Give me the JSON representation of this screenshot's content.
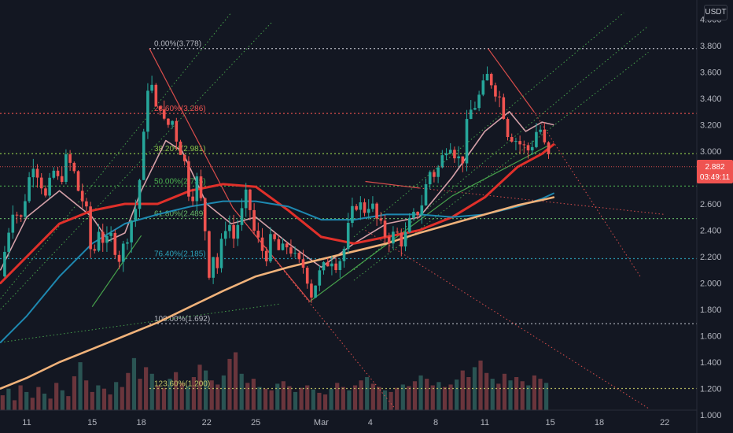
{
  "unit": "USDT",
  "price_tag": {
    "price": "2.882",
    "countdown": "03:49:11"
  },
  "colors": {
    "bg": "#131722",
    "up": "#26a69a",
    "down": "#ef5350",
    "ma_fast": "#d4a0a8",
    "ma_mid": "#e0302a",
    "ma_slow": "#1e88b0",
    "ma_long": "#f0b27a"
  },
  "chart_data": {
    "type": "candlestick",
    "pair": "USDT",
    "ylim": [
      1.05,
      4.05
    ],
    "y_ticks": [
      "4.000",
      "3.800",
      "3.600",
      "3.400",
      "3.200",
      "3.000",
      "2.800",
      "2.600",
      "2.400",
      "2.200",
      "2.000",
      "1.800",
      "1.600",
      "1.400",
      "1.200",
      "1.000"
    ],
    "x_ticks": [
      "11",
      "15",
      "18",
      "22",
      "25",
      "Mar",
      "4",
      "8",
      "11",
      "15",
      "18",
      "22"
    ],
    "x_tick_days": [
      0,
      4,
      7,
      11,
      14,
      18,
      21,
      25,
      28,
      32,
      35,
      39
    ],
    "fib_levels": [
      {
        "label": "0.00%(3.778)",
        "value": 3.778,
        "color": "#b2b5be"
      },
      {
        "label": "23.60%(3.286)",
        "value": 3.286,
        "color": "#ef5350"
      },
      {
        "label": "38.20%(2.981)",
        "value": 2.981,
        "color": "#8bc34a"
      },
      {
        "label": "50.00%(2.735)",
        "value": 2.735,
        "color": "#4caf50"
      },
      {
        "label": "61.80%(2.489)",
        "value": 2.489,
        "color": "#66bb6a"
      },
      {
        "label": "76.40%(2.185)",
        "value": 2.185,
        "color": "#2ba0b8"
      },
      {
        "label": "100.00%(1.692)",
        "value": 1.692,
        "color": "#b2b5be"
      },
      {
        "label": "123.60%(1.200)",
        "value": 1.2,
        "color": "#c0c466"
      }
    ],
    "current_price": 2.882,
    "price_path": [
      [
        -1.6,
        2.05
      ],
      [
        -1.2,
        2.35
      ],
      [
        -0.8,
        2.6
      ],
      [
        -0.4,
        2.45
      ],
      [
        0,
        2.72
      ],
      [
        0.4,
        2.92
      ],
      [
        0.8,
        2.8
      ],
      [
        1.2,
        2.62
      ],
      [
        1.6,
        2.86
      ],
      [
        2.0,
        2.75
      ],
      [
        2.4,
        2.93
      ],
      [
        2.8,
        2.88
      ],
      [
        3.2,
        2.68
      ],
      [
        3.6,
        2.58
      ],
      [
        4.0,
        2.15
      ],
      [
        4.4,
        2.42
      ],
      [
        4.8,
        2.28
      ],
      [
        5.2,
        2.36
      ],
      [
        5.6,
        2.18
      ],
      [
        6.0,
        2.3
      ],
      [
        6.4,
        2.48
      ],
      [
        6.8,
        2.62
      ],
      [
        7.0,
        2.95
      ],
      [
        7.2,
        3.15
      ],
      [
        7.4,
        3.5
      ],
      [
        7.6,
        3.52
      ],
      [
        7.9,
        3.3
      ],
      [
        8.2,
        3.38
      ],
      [
        8.5,
        3.12
      ],
      [
        8.8,
        3.28
      ],
      [
        9.2,
        3.08
      ],
      [
        9.6,
        2.95
      ],
      [
        10.0,
        2.62
      ],
      [
        10.4,
        2.78
      ],
      [
        10.8,
        2.52
      ],
      [
        11.0,
        2.3
      ],
      [
        11.2,
        2.02
      ],
      [
        11.4,
        2.22
      ],
      [
        11.7,
        2.1
      ],
      [
        12.0,
        2.38
      ],
      [
        12.3,
        2.5
      ],
      [
        12.6,
        2.32
      ],
      [
        12.9,
        2.45
      ],
      [
        13.2,
        2.55
      ],
      [
        13.5,
        2.7
      ],
      [
        13.8,
        2.42
      ],
      [
        14.2,
        2.3
      ],
      [
        14.6,
        2.2
      ],
      [
        15.0,
        2.35
      ],
      [
        15.5,
        2.22
      ],
      [
        16.0,
        2.3
      ],
      [
        16.5,
        2.15
      ],
      [
        17.0,
        2.12
      ],
      [
        17.4,
        1.92
      ],
      [
        17.8,
        2.05
      ],
      [
        18.2,
        2.12
      ],
      [
        18.6,
        2.2
      ],
      [
        19.0,
        2.14
      ],
      [
        19.4,
        2.26
      ],
      [
        19.8,
        2.5
      ],
      [
        20.2,
        2.62
      ],
      [
        20.6,
        2.55
      ],
      [
        21.0,
        2.62
      ],
      [
        21.4,
        2.48
      ],
      [
        21.8,
        2.38
      ],
      [
        22.2,
        2.34
      ],
      [
        22.6,
        2.38
      ],
      [
        23.0,
        2.3
      ],
      [
        23.4,
        2.45
      ],
      [
        23.8,
        2.52
      ],
      [
        24.2,
        2.62
      ],
      [
        24.6,
        2.85
      ],
      [
        25.0,
        2.82
      ],
      [
        25.4,
        2.95
      ],
      [
        25.8,
        3.1
      ],
      [
        26.2,
        2.98
      ],
      [
        26.6,
        2.9
      ],
      [
        27.0,
        3.28
      ],
      [
        27.4,
        3.35
      ],
      [
        27.8,
        3.45
      ],
      [
        28.2,
        3.58
      ],
      [
        28.6,
        3.48
      ],
      [
        29.0,
        3.38
      ],
      [
        29.4,
        3.15
      ],
      [
        29.8,
        3.1
      ],
      [
        30.2,
        3.05
      ],
      [
        30.6,
        3.0
      ],
      [
        31.0,
        3.08
      ],
      [
        31.3,
        3.22
      ],
      [
        31.6,
        3.05
      ],
      [
        31.9,
        2.95
      ],
      [
        32.1,
        2.88
      ]
    ],
    "ma_series": [
      {
        "key": "ma_fast",
        "points": [
          [
            -1.6,
            2.1
          ],
          [
            0,
            2.5
          ],
          [
            2,
            2.7
          ],
          [
            4,
            2.5
          ],
          [
            5,
            2.32
          ],
          [
            6,
            2.38
          ],
          [
            7,
            2.7
          ],
          [
            8.5,
            3.08
          ],
          [
            9.5,
            3.0
          ],
          [
            11,
            2.6
          ],
          [
            12.5,
            2.45
          ],
          [
            14,
            2.5
          ],
          [
            16,
            2.3
          ],
          [
            18,
            2.12
          ],
          [
            20,
            2.3
          ],
          [
            22,
            2.45
          ],
          [
            24,
            2.5
          ],
          [
            26,
            2.8
          ],
          [
            28,
            3.15
          ],
          [
            29.5,
            3.3
          ],
          [
            30.5,
            3.15
          ],
          [
            31.5,
            3.22
          ],
          [
            32.2,
            3.2
          ]
        ]
      },
      {
        "key": "ma_mid",
        "points": [
          [
            -1.6,
            2.0
          ],
          [
            0,
            2.2
          ],
          [
            2,
            2.45
          ],
          [
            4,
            2.55
          ],
          [
            6,
            2.6
          ],
          [
            8,
            2.6
          ],
          [
            10,
            2.7
          ],
          [
            12,
            2.75
          ],
          [
            14,
            2.73
          ],
          [
            16,
            2.55
          ],
          [
            18,
            2.35
          ],
          [
            20,
            2.3
          ],
          [
            22,
            2.35
          ],
          [
            24,
            2.4
          ],
          [
            26,
            2.5
          ],
          [
            28,
            2.65
          ],
          [
            30,
            2.88
          ],
          [
            31.5,
            2.98
          ],
          [
            32.2,
            3.05
          ]
        ]
      },
      {
        "key": "ma_slow",
        "points": [
          [
            -1.6,
            1.55
          ],
          [
            0,
            1.75
          ],
          [
            2,
            2.05
          ],
          [
            4,
            2.3
          ],
          [
            6,
            2.45
          ],
          [
            8,
            2.52
          ],
          [
            10,
            2.58
          ],
          [
            12,
            2.62
          ],
          [
            14,
            2.62
          ],
          [
            16,
            2.58
          ],
          [
            18,
            2.48
          ],
          [
            20,
            2.48
          ],
          [
            22,
            2.52
          ],
          [
            24,
            2.52
          ],
          [
            26,
            2.5
          ],
          [
            28,
            2.52
          ],
          [
            30,
            2.58
          ],
          [
            31.5,
            2.64
          ],
          [
            32.2,
            2.68
          ]
        ]
      },
      {
        "key": "ma_long",
        "points": [
          [
            -1.6,
            1.2
          ],
          [
            0,
            1.28
          ],
          [
            2,
            1.4
          ],
          [
            4,
            1.5
          ],
          [
            6,
            1.6
          ],
          [
            8,
            1.7
          ],
          [
            10,
            1.82
          ],
          [
            12,
            1.94
          ],
          [
            14,
            2.05
          ],
          [
            16,
            2.12
          ],
          [
            18,
            2.18
          ],
          [
            20,
            2.24
          ],
          [
            22,
            2.3
          ],
          [
            24,
            2.38
          ],
          [
            26,
            2.45
          ],
          [
            28,
            2.52
          ],
          [
            30,
            2.59
          ],
          [
            31.5,
            2.63
          ],
          [
            32.2,
            2.65
          ]
        ]
      }
    ],
    "volume": [
      18,
      26,
      12,
      30,
      22,
      15,
      28,
      20,
      14,
      33,
      24,
      17,
      41,
      58,
      36,
      22,
      30,
      26,
      19,
      34,
      28,
      45,
      63,
      38,
      52,
      44,
      30,
      27,
      38,
      46,
      33,
      29,
      40,
      55,
      48,
      36,
      31,
      42,
      62,
      70,
      44,
      33,
      38,
      28,
      26,
      24,
      32,
      35,
      29,
      22,
      27,
      30,
      25,
      21,
      19,
      26,
      33,
      28,
      24,
      30,
      36,
      40,
      32,
      28,
      24,
      22,
      27,
      31,
      29,
      35,
      42,
      38,
      30,
      34,
      28,
      31,
      37,
      48,
      40,
      52,
      60,
      45,
      38,
      32,
      44,
      36,
      40,
      35,
      30,
      42,
      38,
      33
    ],
    "trend_lines": [
      {
        "from": [
          7.5,
          3.778
        ],
        "to": [
          12.6,
          2.57
        ],
        "color": "#ef5350",
        "style": "solid"
      },
      {
        "from": [
          12.6,
          2.57
        ],
        "to": [
          17.3,
          1.86
        ],
        "color": "#ef5350",
        "style": "solid"
      },
      {
        "from": [
          28.2,
          3.778
        ],
        "to": [
          31.0,
          3.3
        ],
        "color": "#ef5350",
        "style": "solid"
      },
      {
        "from": [
          31.0,
          3.3
        ],
        "to": [
          37.5,
          2.05
        ],
        "color": "#ef5350",
        "style": "dotted"
      },
      {
        "from": [
          20.7,
          2.77
        ],
        "to": [
          24.0,
          2.72
        ],
        "color": "#ef5350",
        "style": "solid"
      },
      {
        "from": [
          24.0,
          2.72
        ],
        "to": [
          39.0,
          2.52
        ],
        "color": "#ef5350",
        "style": "dotted"
      },
      {
        "from": [
          17.3,
          1.86
        ],
        "to": [
          26.0,
          2.66
        ],
        "color": "#4caf50",
        "style": "solid"
      },
      {
        "from": [
          26.0,
          2.66
        ],
        "to": [
          32.0,
          3.05
        ],
        "color": "#4caf50",
        "style": "solid"
      },
      {
        "from": [
          4.0,
          1.82
        ],
        "to": [
          7.0,
          2.36
        ],
        "color": "#4caf50",
        "style": "solid"
      },
      {
        "from": [
          -1.6,
          1.8
        ],
        "to": [
          15.0,
          3.98
        ],
        "color": "#4caf50",
        "style": "dotted"
      },
      {
        "from": [
          -1.6,
          1.88
        ],
        "to": [
          12.5,
          4.05
        ],
        "color": "#4caf50",
        "style": "dotted"
      },
      {
        "from": [
          -1.6,
          1.55
        ],
        "to": [
          15.4,
          1.84
        ],
        "color": "#4caf50",
        "style": "dotted"
      },
      {
        "from": [
          20.0,
          2.1
        ],
        "to": [
          38.0,
          3.95
        ],
        "color": "#4caf50",
        "style": "dotted"
      },
      {
        "from": [
          20.0,
          2.02
        ],
        "to": [
          38.0,
          3.75
        ],
        "color": "#4caf50",
        "style": "dotted"
      },
      {
        "from": [
          20.0,
          2.35
        ],
        "to": [
          36.5,
          4.05
        ],
        "color": "#4caf50",
        "style": "dotted"
      },
      {
        "from": [
          12.6,
          2.57
        ],
        "to": [
          22.5,
          1.05
        ],
        "color": "#ef5350",
        "style": "dotted"
      },
      {
        "from": [
          20.7,
          2.4
        ],
        "to": [
          38.0,
          1.05
        ],
        "color": "#ef5350",
        "style": "dotted"
      }
    ],
    "grid": false,
    "legend": "none"
  }
}
